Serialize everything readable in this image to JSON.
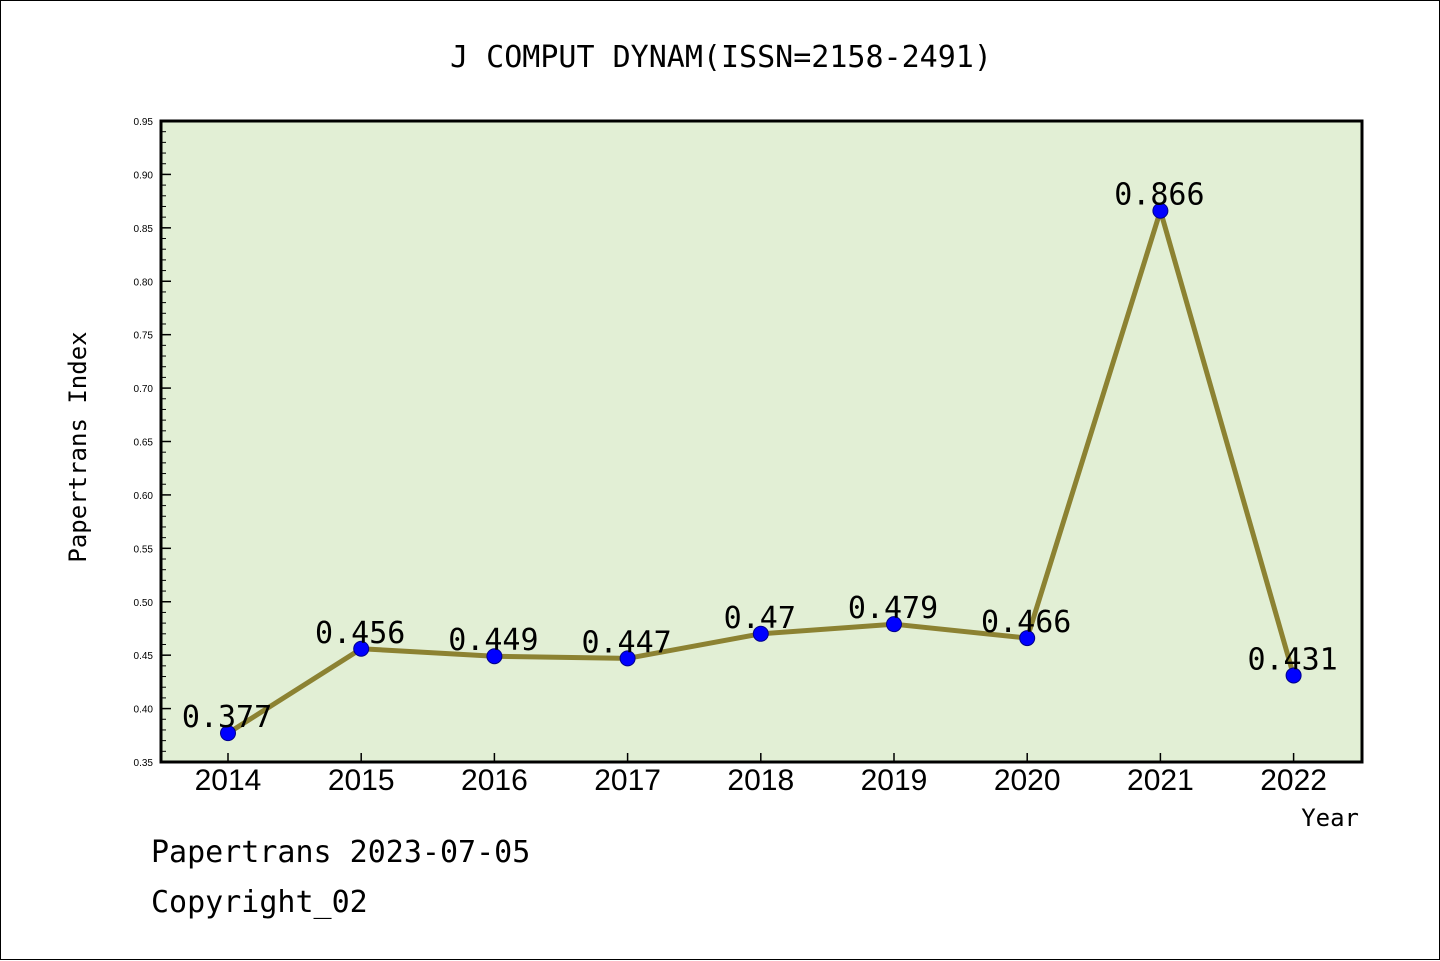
{
  "chart_data": {
    "type": "line",
    "title": "J COMPUT DYNAM(ISSN=2158-2491)",
    "xlabel": "Year",
    "ylabel": "Papertrans Index",
    "categories": [
      "2014",
      "2015",
      "2016",
      "2017",
      "2018",
      "2019",
      "2020",
      "2021",
      "2022"
    ],
    "values": [
      0.377,
      0.456,
      0.449,
      0.447,
      0.47,
      0.479,
      0.466,
      0.866,
      0.431
    ],
    "data_labels": [
      "0.377",
      "0.456",
      "0.449",
      "0.447",
      "0.47",
      "0.479",
      "0.466",
      "0.866",
      "0.431"
    ],
    "ylim": [
      0.35,
      0.95
    ],
    "yticks": [
      "0.35",
      "0.40",
      "0.45",
      "0.50",
      "0.55",
      "0.60",
      "0.65",
      "0.70",
      "0.75",
      "0.80",
      "0.85",
      "0.90",
      "0.95"
    ],
    "grid": false,
    "colors": {
      "plot_background": "#e2efd5",
      "line": "#8c8232",
      "marker": "#0000ff"
    }
  },
  "footer": {
    "date_text": "Papertrans 2023-07-05",
    "copyright_text": "Copyright_02"
  }
}
